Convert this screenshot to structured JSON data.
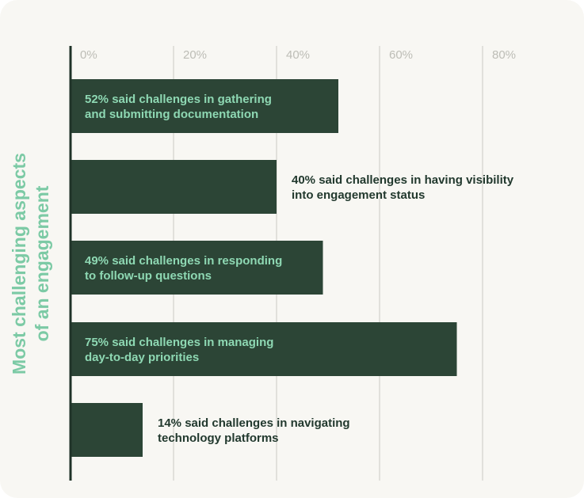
{
  "chart_data": {
    "type": "bar",
    "orientation": "horizontal",
    "ylabel": [
      "Most challenging aspects",
      "of an engagement"
    ],
    "xlim": [
      0,
      80
    ],
    "x_ticks": [
      "0%",
      "20%",
      "40%",
      "60%",
      "80%"
    ],
    "x_tick_values": [
      0,
      20,
      40,
      60,
      80
    ],
    "grid": true,
    "values": [
      52,
      40,
      49,
      75,
      14
    ],
    "annotations": [
      [
        "52% said challenges in gathering",
        "and submitting documentation"
      ],
      [
        "40% said challenges in having visibility",
        "into engagement status"
      ],
      [
        "49% said challenges in responding",
        "to follow-up questions"
      ],
      [
        "75% said challenges in managing",
        "day-to-day priorities"
      ],
      [
        "14% said challenges in navigating",
        "technology platforms"
      ]
    ],
    "label_placement": [
      "inside",
      "outside",
      "inside",
      "inside",
      "outside"
    ]
  },
  "colors": {
    "bar": "#2c4536",
    "axis": "#1f3328",
    "grid": "#d9d9d3",
    "tick_label": "#bdbdb6",
    "title": "#7ccaa5",
    "label_inside": "#8ed8b3",
    "label_outside": "#22392e",
    "background": "#f8f7f3"
  }
}
